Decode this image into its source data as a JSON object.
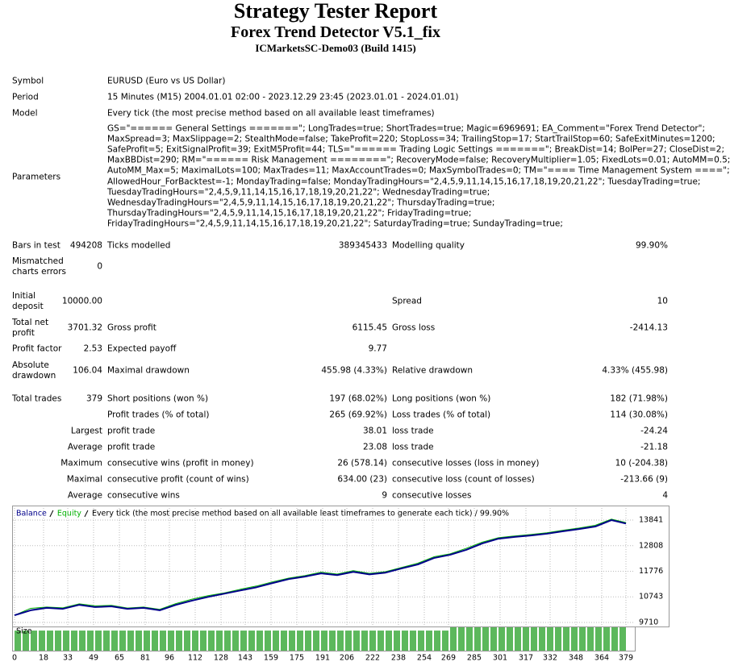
{
  "header": {
    "title": "Strategy Tester Report",
    "subtitle": "Forex Trend Detector V5.1_fix",
    "server": "ICMarketsSC-Demo03 (Build 1415)"
  },
  "rows": [
    [
      "Symbol",
      "EURUSD (Euro vs US Dollar)"
    ],
    [
      "Period",
      "15 Minutes (M15) 2004.01.01 02:00 - 2023.12.29 23:45 (2023.01.01 - 2024.01.01)"
    ],
    [
      "Model",
      "Every tick (the most precise method based on all available least timeframes)"
    ],
    [
      "Parameters",
      [
        "GS=\"====== General Settings =======\"; LongTrades=true; ShortTrades=true; Magic=6969691; EA_Comment=\"Forex Trend Detector\";",
        "MaxSpread=3; MaxSlippage=2; StealthMode=false; TakeProfit=220; StopLoss=34; TrailingStop=17; StartTrailStop=60; SafeExitMinutes=1200;",
        "SafeProfit=5; ExitSignalProfit=39; ExitM5Profit=44; TLS=\"====== Trading Logic Settings =======\"; BreakDist=14; BolPer=27; CloseDist=2;",
        "MaxBBDist=290; RM=\"====== Risk Management ========\"; RecoveryMode=false; RecoveryMultiplier=1.05; FixedLots=0.01; AutoMM=0.5;",
        "AutoMM_Max=5; MaximalLots=100; MaxTrades=11; MaxAccountTrades=0; MaxSymbolTrades=0; TM=\"==== Time Management System ====\";",
        "AllowedHour_ForBacktest=-1; MondayTrading=false; MondayTradingHours=\"2,4,5,9,11,14,15,16,17,18,19,20,21,22\"; TuesdayTrading=true;",
        "TuesdayTradingHours=\"2,4,5,9,11,14,15,16,17,18,19,20,21,22\"; WednesdayTrading=true;",
        "WednesdayTradingHours=\"2,4,5,9,11,14,15,16,17,18,19,20,21,22\"; ThursdayTrading=true;",
        "ThursdayTradingHours=\"2,4,5,9,11,14,15,16,17,18,19,20,21,22\"; FridayTrading=true;",
        "FridayTradingHours=\"2,4,5,9,11,14,15,16,17,18,19,20,21,22\"; SaturdayTrading=true; SundayTrading=true;"
      ]
    ],
    [
      "Bars in test",
      "494208",
      "Ticks modelled",
      "389345433",
      "Modelling quality",
      "99.90%"
    ],
    [
      "Mismatched charts errors",
      "0"
    ],
    [
      "Initial deposit",
      "10000.00",
      "Spread",
      "10"
    ],
    [
      "Total net profit",
      "3701.32",
      "Gross profit",
      "6115.45",
      "Gross loss",
      "-2414.13"
    ],
    [
      "Profit factor",
      "2.53",
      "Expected payoff",
      "9.77"
    ],
    [
      "Absolute drawdown",
      "106.04",
      "Maximal drawdown",
      "455.98 (4.33%)",
      "Relative drawdown",
      "4.33% (455.98)"
    ],
    [
      "Total trades",
      "379",
      "Short positions (won %)",
      "197 (68.02%)",
      "Long positions (won %)",
      "182 (71.98%)"
    ],
    [
      "Profit trades (% of total)",
      "265 (69.92%)",
      "Loss trades (% of total)",
      "114 (30.08%)"
    ],
    [
      "Largest",
      "profit trade",
      "38.01",
      "loss trade",
      "-24.24"
    ],
    [
      "Average",
      "profit trade",
      "23.08",
      "loss trade",
      "-21.18"
    ],
    [
      "Maximum",
      "consecutive wins (profit in money)",
      "26 (578.14)",
      "consecutive losses (loss in money)",
      "10 (-204.38)"
    ],
    [
      "Maximal",
      "consecutive profit (count of wins)",
      "634.00 (23)",
      "consecutive loss (count of losses)",
      "-213.66 (9)"
    ],
    [
      "Average",
      "consecutive wins",
      "9",
      "consecutive losses",
      "4"
    ]
  ],
  "chart_data": [
    {
      "type": "line",
      "subtitle": "Every tick (the most precise method based on all available least timeframes to generate each tick) / 99.90%",
      "x": [
        0,
        10,
        20,
        30,
        40,
        50,
        60,
        70,
        80,
        90,
        100,
        110,
        120,
        130,
        140,
        150,
        160,
        170,
        180,
        190,
        200,
        210,
        220,
        230,
        240,
        250,
        260,
        270,
        280,
        290,
        300,
        310,
        320,
        330,
        340,
        350,
        360,
        370,
        379
      ],
      "series": [
        {
          "name": "Balance",
          "color": "#00008b",
          "values": [
            10000,
            10200,
            10300,
            10260,
            10420,
            10330,
            10360,
            10260,
            10300,
            10200,
            10420,
            10590,
            10740,
            10870,
            11000,
            11130,
            11300,
            11460,
            11560,
            11690,
            11620,
            11750,
            11650,
            11720,
            11890,
            12050,
            12310,
            12440,
            12640,
            12900,
            13090,
            13160,
            13220,
            13290,
            13390,
            13480,
            13580,
            13840,
            13701
          ]
        },
        {
          "name": "Equity",
          "color": "#00b000",
          "values": [
            10000,
            10280,
            10330,
            10300,
            10460,
            10380,
            10400,
            10290,
            10330,
            10240,
            10470,
            10650,
            10790,
            10900,
            11050,
            11180,
            11350,
            11500,
            11600,
            11740,
            11660,
            11800,
            11690,
            11760,
            11930,
            12100,
            12360,
            12480,
            12700,
            12950,
            13130,
            13200,
            13260,
            13330,
            13430,
            13520,
            13630,
            13880,
            13740
          ]
        }
      ],
      "xlim": [
        0,
        384
      ],
      "ylim": [
        9612,
        14329
      ],
      "yticks": [
        9710,
        10743,
        11776,
        12808,
        13841
      ],
      "grid": true
    },
    {
      "type": "bar",
      "title": "Size",
      "color": "#5cb85c",
      "x": [
        0,
        5,
        10,
        15,
        20,
        25,
        30,
        35,
        40,
        45,
        50,
        55,
        60,
        65,
        70,
        75,
        80,
        85,
        90,
        95,
        100,
        105,
        110,
        115,
        120,
        125,
        130,
        135,
        140,
        145,
        150,
        155,
        160,
        165,
        170,
        175,
        180,
        185,
        190,
        195,
        200,
        205,
        210,
        215,
        220,
        225,
        230,
        235,
        240,
        245,
        250,
        255,
        260,
        265,
        270,
        275,
        280,
        285,
        290,
        295,
        300,
        305,
        310,
        315,
        320,
        325,
        330,
        335,
        340,
        345,
        350,
        355,
        360,
        365,
        370,
        375
      ],
      "values": [
        0.86,
        0.86,
        0.86,
        0.86,
        0.86,
        0.86,
        0.86,
        0.86,
        0.86,
        0.86,
        0.86,
        0.86,
        0.86,
        0.86,
        0.86,
        0.86,
        0.86,
        0.86,
        0.86,
        0.86,
        0.86,
        0.86,
        0.86,
        0.86,
        0.86,
        0.86,
        0.86,
        0.86,
        0.86,
        0.86,
        0.86,
        0.86,
        0.86,
        0.86,
        0.86,
        0.86,
        0.86,
        0.86,
        0.86,
        0.86,
        0.86,
        0.86,
        0.86,
        0.86,
        0.86,
        0.86,
        0.86,
        0.86,
        0.86,
        0.86,
        0.86,
        0.86,
        0.86,
        0.86,
        1,
        1,
        1,
        1,
        1,
        1,
        1,
        1,
        1,
        1,
        1,
        1,
        1,
        1,
        1,
        1,
        1,
        1,
        1,
        1,
        1,
        1
      ],
      "xlim": [
        0,
        384
      ],
      "ylim": [
        0,
        1
      ],
      "xticks": [
        0,
        18,
        33,
        49,
        65,
        81,
        96,
        112,
        128,
        143,
        159,
        175,
        191,
        206,
        222,
        238,
        254,
        269,
        285,
        301,
        317,
        332,
        348,
        364,
        379
      ]
    }
  ]
}
